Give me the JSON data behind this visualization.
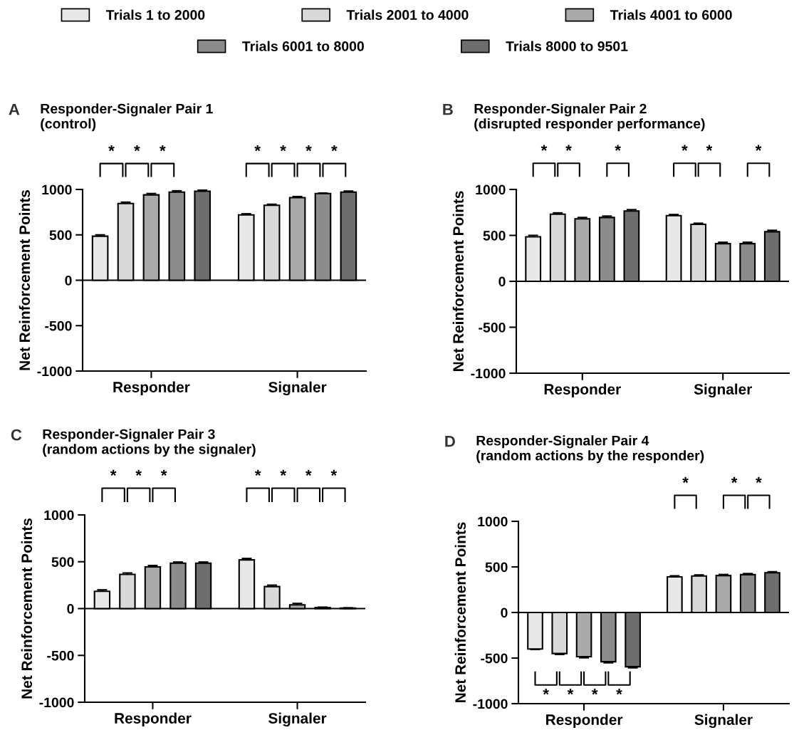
{
  "chart_data": [
    {
      "type": "bar",
      "title": "Responder-Signaler Pair 1\n(control)",
      "ylabel": "Net Reinforcement Points",
      "categories": [
        "Responder",
        "Signaler"
      ],
      "ylim": [
        -1000,
        1000
      ],
      "yticks": [
        -1000,
        -500,
        0,
        500,
        1000
      ],
      "legend": "top",
      "ref_lines": [
        {
          "axis": "y",
          "value": 0
        }
      ],
      "annotations": [
        "A",
        "*",
        "*",
        "*",
        "*",
        "*",
        "*",
        "*"
      ],
      "series": [
        {
          "name": "Trials 1 to 2000",
          "color": "#e8e8e8",
          "values": [
            485,
            720
          ],
          "errors": [
            15,
            12
          ]
        },
        {
          "name": "Trials 2001 to 4000",
          "color": "#d9d9d9",
          "values": [
            845,
            825
          ],
          "errors": [
            15,
            12
          ]
        },
        {
          "name": "Trials 4001 to 6000",
          "color": "#aaaaaa",
          "values": [
            940,
            910
          ],
          "errors": [
            15,
            12
          ]
        },
        {
          "name": "Trials 6001 to 8000",
          "color": "#8c8c8c",
          "values": [
            970,
            955
          ],
          "errors": [
            15,
            5
          ]
        },
        {
          "name": "Trials 8000 to 9501",
          "color": "#6e6e6e",
          "values": [
            980,
            970
          ],
          "errors": [
            12,
            12
          ]
        }
      ]
    },
    {
      "type": "bar",
      "title": "Responder-Signaler Pair 2\n(disrupted responder performance)",
      "ylabel": "Net Reinforcement Points",
      "categories": [
        "Responder",
        "Signaler"
      ],
      "ylim": [
        -1000,
        1000
      ],
      "yticks": [
        -1000,
        -500,
        0,
        500,
        1000
      ],
      "ref_lines": [
        {
          "axis": "y",
          "value": 0
        }
      ],
      "annotations": [
        "B",
        "*",
        "*",
        "*",
        "*",
        "*",
        "*"
      ],
      "series": [
        {
          "color": "#e8e8e8",
          "values": [
            485,
            715
          ],
          "errors": [
            15,
            12
          ]
        },
        {
          "color": "#d9d9d9",
          "values": [
            730,
            620
          ],
          "errors": [
            15,
            12
          ]
        },
        {
          "color": "#aaaaaa",
          "values": [
            680,
            410
          ],
          "errors": [
            15,
            15
          ]
        },
        {
          "color": "#8c8c8c",
          "values": [
            695,
            410
          ],
          "errors": [
            15,
            15
          ]
        },
        {
          "color": "#6e6e6e",
          "values": [
            765,
            540
          ],
          "errors": [
            15,
            15
          ]
        }
      ]
    },
    {
      "type": "bar",
      "title": "Responder-Signaler Pair 3\n(random actions by the signaler)",
      "ylabel": "Net Reinforcement Points",
      "categories": [
        "Responder",
        "Signaler"
      ],
      "ylim": [
        -1000,
        1000
      ],
      "yticks": [
        -1000,
        -500,
        0,
        500,
        1000
      ],
      "ref_lines": [
        {
          "axis": "y",
          "value": 0
        }
      ],
      "annotations": [
        "C",
        "*",
        "*",
        "*",
        "*",
        "*",
        "*",
        "*"
      ],
      "series": [
        {
          "color": "#e8e8e8",
          "values": [
            185,
            520
          ],
          "errors": [
            15,
            15
          ]
        },
        {
          "color": "#d9d9d9",
          "values": [
            365,
            235
          ],
          "errors": [
            15,
            15
          ]
        },
        {
          "color": "#aaaaaa",
          "values": [
            445,
            40
          ],
          "errors": [
            15,
            15
          ]
        },
        {
          "color": "#8c8c8c",
          "values": [
            485,
            10
          ],
          "errors": [
            12,
            5
          ]
        },
        {
          "color": "#6e6e6e",
          "values": [
            485,
            5
          ],
          "errors": [
            12,
            3
          ]
        }
      ]
    },
    {
      "type": "bar",
      "title": "Responder-Signaler Pair 4\n(random actions by the responder)",
      "ylabel": "Net Reinforcement Points",
      "categories": [
        "Responder",
        "Signaler"
      ],
      "ylim": [
        -1000,
        1000
      ],
      "yticks": [
        -1000,
        -500,
        0,
        500,
        1000
      ],
      "ref_lines": [
        {
          "axis": "y",
          "value": 0
        }
      ],
      "annotations": [
        "D",
        "*",
        "*",
        "*",
        "*",
        "*",
        "*",
        "*"
      ],
      "series": [
        {
          "color": "#e8e8e8",
          "values": [
            -400,
            390
          ],
          "errors": [
            5,
            12
          ]
        },
        {
          "color": "#d9d9d9",
          "values": [
            -450,
            400
          ],
          "errors": [
            10,
            12
          ]
        },
        {
          "color": "#aaaaaa",
          "values": [
            -485,
            405
          ],
          "errors": [
            12,
            12
          ]
        },
        {
          "color": "#8c8c8c",
          "values": [
            -540,
            415
          ],
          "errors": [
            12,
            12
          ]
        },
        {
          "color": "#6e6e6e",
          "values": [
            -595,
            435
          ],
          "errors": [
            12,
            12
          ]
        }
      ]
    }
  ]
}
